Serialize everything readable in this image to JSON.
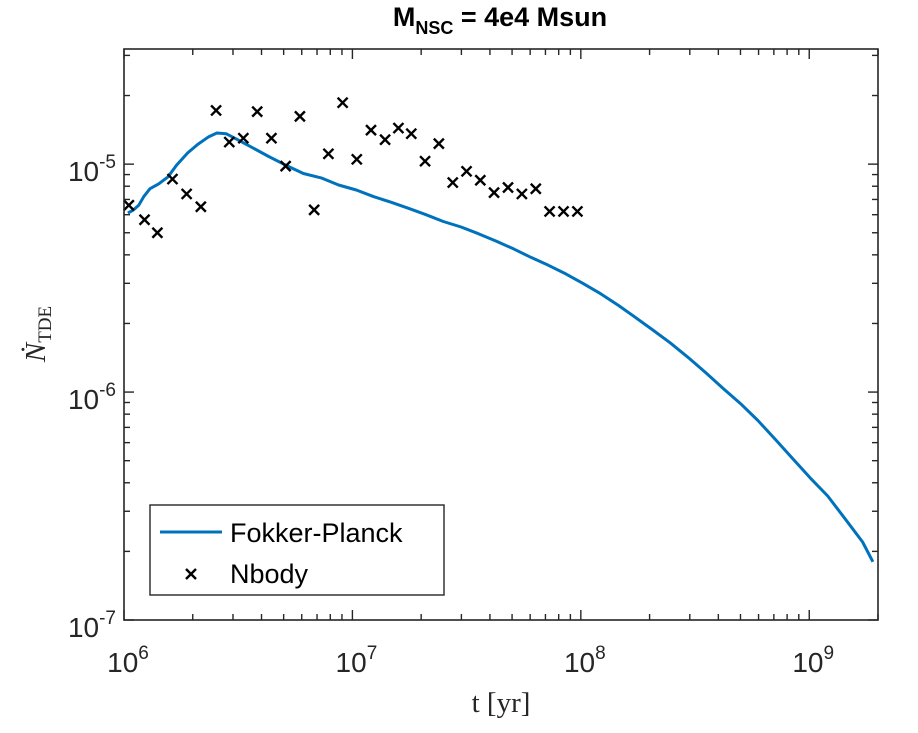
{
  "colors": {
    "fokker_planck": "#0072BD",
    "nbody": "#000000",
    "axes": "#262626"
  },
  "chart_data": {
    "type": "line",
    "title": {
      "prefix": "M",
      "subscript": "NSC",
      "suffix": " = 4e4 Msun"
    },
    "xlabel": "t [yr]",
    "ylabel": {
      "main": "Ṅ",
      "subscript": "TDE"
    },
    "xscale": "log",
    "yscale": "log",
    "xlim": [
      1000000,
      2000000000
    ],
    "ylim": [
      1e-07,
      3.2e-05
    ],
    "x_ticks": [
      {
        "value": 1000000,
        "base": "10",
        "exp": "6"
      },
      {
        "value": 10000000,
        "base": "10",
        "exp": "7"
      },
      {
        "value": 100000000,
        "base": "10",
        "exp": "8"
      },
      {
        "value": 1000000000,
        "base": "10",
        "exp": "9"
      }
    ],
    "y_ticks": [
      {
        "value": 1e-07,
        "base": "10",
        "exp": "-7"
      },
      {
        "value": 1e-06,
        "base": "10",
        "exp": "-6"
      },
      {
        "value": 1e-05,
        "base": "10",
        "exp": "-5"
      }
    ],
    "legend": {
      "position": "bottom-left",
      "entries": [
        "Fokker-Planck",
        "Nbody"
      ]
    },
    "series": [
      {
        "name": "Fokker-Planck",
        "style": "line",
        "x": [
          1040000,
          1100000,
          1160000,
          1220000,
          1300000,
          1420000,
          1560000,
          1700000,
          1900000,
          2100000,
          2350000,
          2550000,
          2800000,
          3100000,
          3600000,
          4300000,
          5100000,
          6100000,
          7300000,
          8700000,
          10400000,
          12400000,
          14800000,
          17600000,
          21000000,
          25000000,
          29900000,
          35600000,
          42500000,
          50700000,
          60400000,
          72100000,
          85900000,
          102000000,
          122000000,
          146000000,
          174000000,
          207000000,
          247000000,
          295000000,
          351000000,
          419000000,
          500000000,
          596000000,
          710000000,
          847000000,
          1010000000,
          1204000000,
          1436000000,
          1712000000,
          1900000000
        ],
        "y": [
          6.1e-06,
          6.3e-06,
          6.6e-06,
          7.2e-06,
          7.8e-06,
          8.2e-06,
          8.8e-06,
          9.9e-06,
          1.12e-05,
          1.22e-05,
          1.32e-05,
          1.37e-05,
          1.36e-05,
          1.29e-05,
          1.19e-05,
          1.08e-05,
          9.9e-06,
          9.1e-06,
          8.7e-06,
          8.1e-06,
          7.7e-06,
          7.2e-06,
          6.8e-06,
          6.4e-06,
          6e-06,
          5.6e-06,
          5.3e-06,
          4.95e-06,
          4.6e-06,
          4.25e-06,
          3.9e-06,
          3.6e-06,
          3.3e-06,
          3e-06,
          2.7e-06,
          2.4e-06,
          2.12e-06,
          1.87e-06,
          1.64e-06,
          1.42e-06,
          1.22e-06,
          1.04e-06,
          8.9e-07,
          7.5e-07,
          6.2e-07,
          5.1e-07,
          4.2e-07,
          3.5e-07,
          2.78e-07,
          2.2e-07,
          1.8e-07
        ]
      },
      {
        "name": "Nbody",
        "style": "markers",
        "marker": "x",
        "x": [
          1050000,
          1230000,
          1400000,
          1630000,
          1880000,
          2170000,
          2530000,
          2890000,
          3330000,
          3830000,
          4420000,
          5100000,
          5890000,
          6800000,
          7850000,
          9060000,
          10450000,
          12060000,
          13900000,
          15900000,
          18100000,
          20800000,
          23900000,
          27500000,
          31600000,
          36300000,
          41700000,
          48000000,
          55200000,
          63500000,
          73000000,
          84000000,
          96600000
        ],
        "y": [
          6.6e-06,
          5.7e-06,
          5e-06,
          8.6e-06,
          7.4e-06,
          6.5e-06,
          1.72e-05,
          1.25e-05,
          1.3e-05,
          1.7e-05,
          1.3e-05,
          9.8e-06,
          1.62e-05,
          6.3e-06,
          1.11e-05,
          1.86e-05,
          1.05e-05,
          1.41e-05,
          1.28e-05,
          1.44e-05,
          1.36e-05,
          1.03e-05,
          1.23e-05,
          8.3e-06,
          9.3e-06,
          8.5e-06,
          7.5e-06,
          7.9e-06,
          7.4e-06,
          7.8e-06,
          6.2e-06,
          6.2e-06,
          6.2e-06
        ]
      }
    ]
  }
}
